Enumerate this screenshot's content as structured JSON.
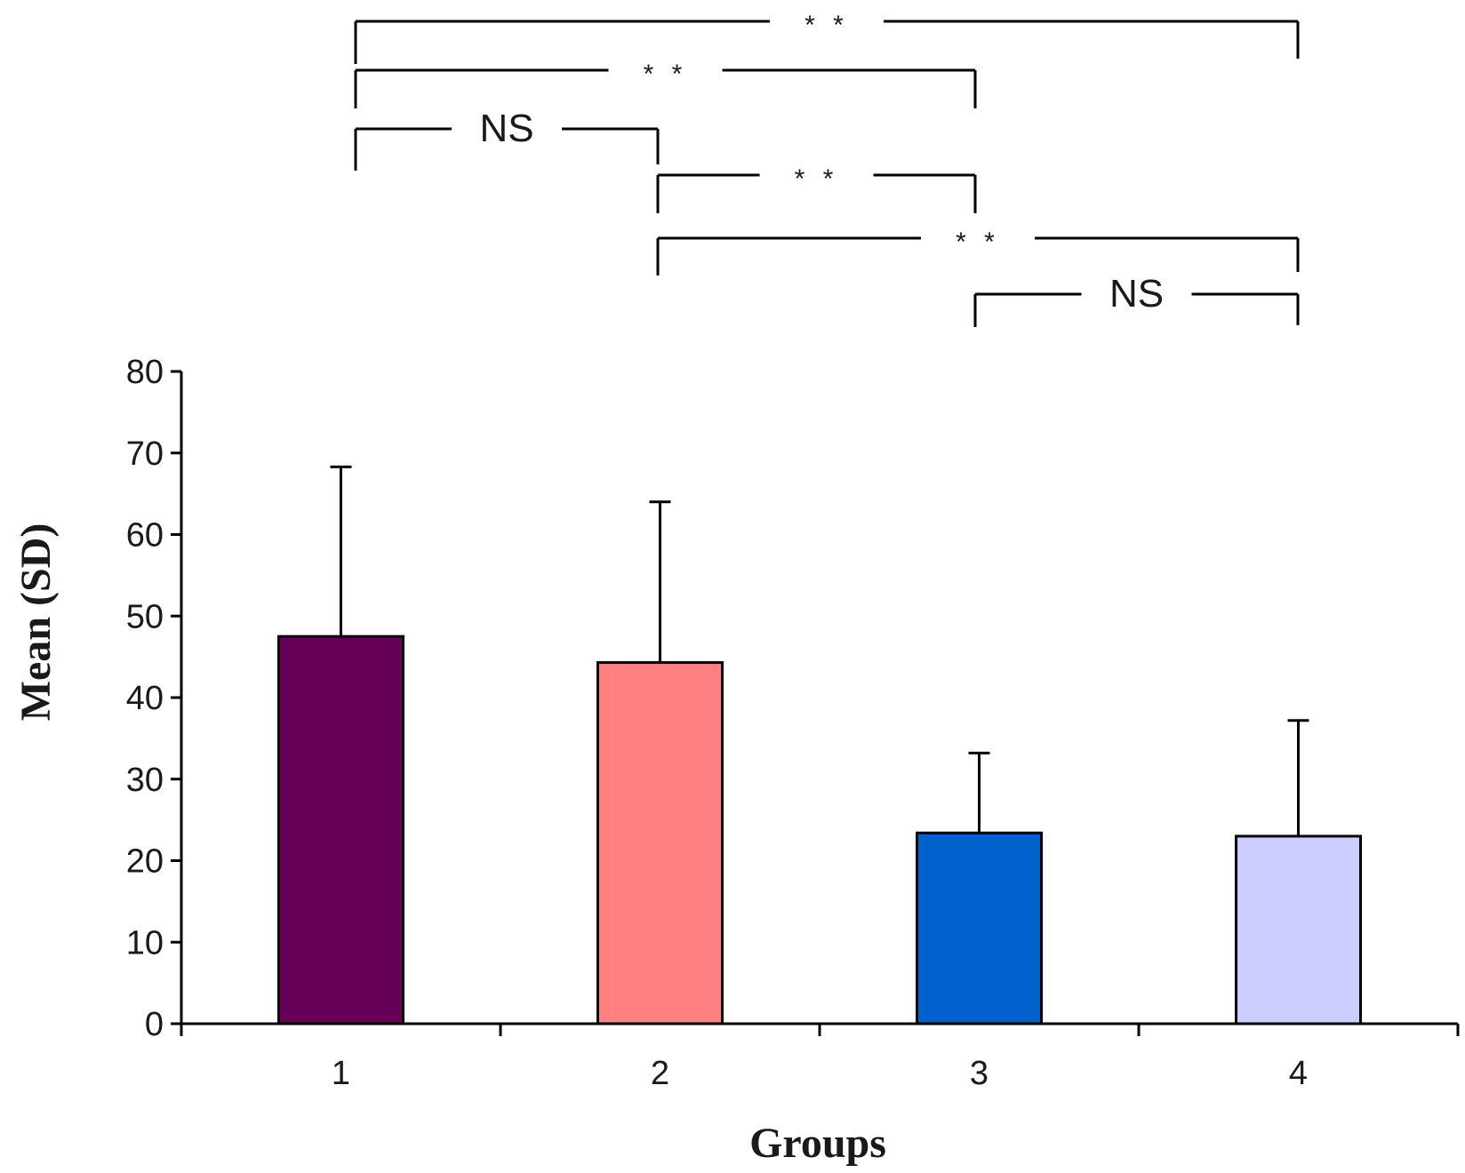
{
  "chart_data": {
    "type": "bar",
    "title": "",
    "xlabel": "Groups",
    "ylabel": "Mean (SD)",
    "categories": [
      "1",
      "2",
      "3",
      "4"
    ],
    "values": [
      47.5,
      44.3,
      23.4,
      23.0
    ],
    "error_upper": [
      68.3,
      64.0,
      33.2,
      37.2
    ],
    "colors": [
      "#660059",
      "#ff8080",
      "#0060cc",
      "#ccccff"
    ],
    "ylim": [
      0,
      80
    ],
    "yticks": [
      0,
      10,
      20,
      30,
      40,
      50,
      60,
      70,
      80
    ],
    "grid": false,
    "legend": "none",
    "significance": [
      {
        "from": 1,
        "to": 4,
        "label": "* *"
      },
      {
        "from": 1,
        "to": 3,
        "label": "* *"
      },
      {
        "from": 1,
        "to": 2,
        "label": "NS"
      },
      {
        "from": 2,
        "to": 3,
        "label": "* *"
      },
      {
        "from": 2,
        "to": 4,
        "label": "* *"
      },
      {
        "from": 3,
        "to": 4,
        "label": "NS"
      }
    ]
  }
}
